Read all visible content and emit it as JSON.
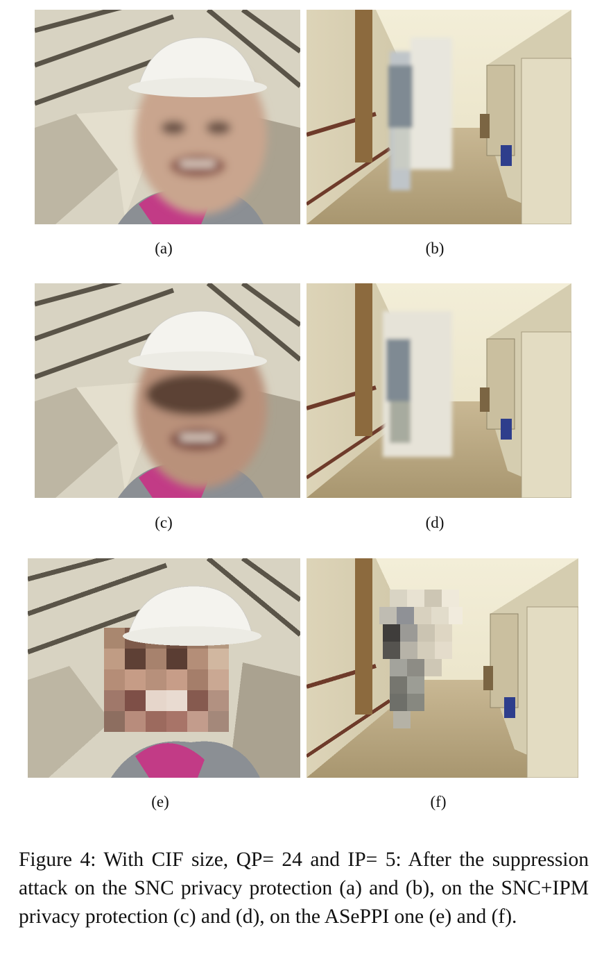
{
  "figure": {
    "panels": [
      {
        "id": "a",
        "label": "(a)",
        "subject": "worker-face",
        "masking": "blurred"
      },
      {
        "id": "b",
        "label": "(b)",
        "subject": "hallway",
        "masking": "blurred"
      },
      {
        "id": "c",
        "label": "(c)",
        "subject": "worker-face",
        "masking": "blurred"
      },
      {
        "id": "d",
        "label": "(d)",
        "subject": "hallway",
        "masking": "blurred"
      },
      {
        "id": "e",
        "label": "(e)",
        "subject": "worker-face",
        "masking": "blocky"
      },
      {
        "id": "f",
        "label": "(f)",
        "subject": "hallway",
        "masking": "blocky"
      }
    ],
    "caption": "Figure 4: With CIF size, QP= 24 and IP= 5: After the suppression attack on the SNC privacy protection (a) and (b), on the SNC+IPM privacy protection (c) and (d), on the ASePPI one (e) and (f)."
  }
}
